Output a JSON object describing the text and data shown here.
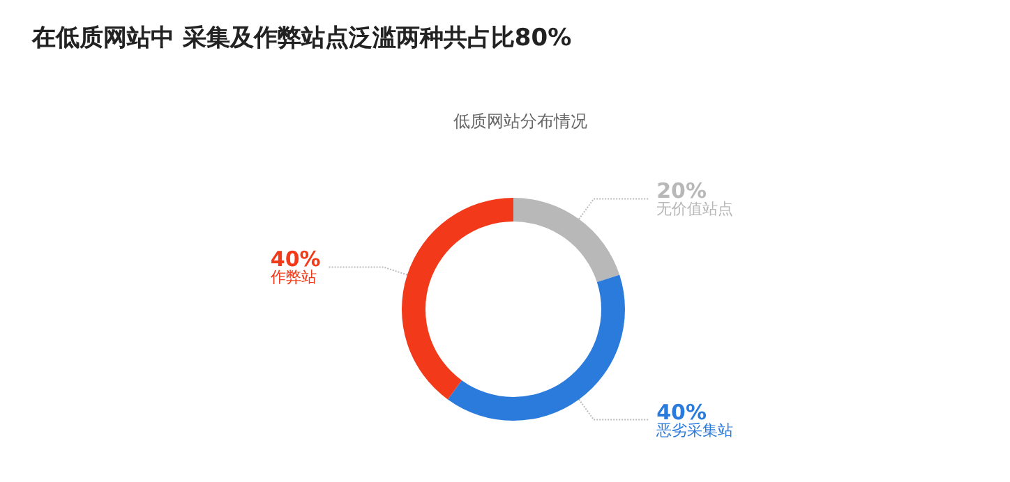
{
  "chart_data": {
    "type": "donut",
    "title": "在低质网站中 采集及作弊站点泛滥两种共占比80%",
    "subtitle": "低质网站分布情况",
    "categories": [
      "无价值站点",
      "恶劣采集站",
      "作弊站"
    ],
    "values": [
      20,
      40,
      40
    ],
    "value_labels": [
      "20%",
      "40%",
      "40%"
    ],
    "colors": [
      "#b8b8b8",
      "#2b7bdc",
      "#f2391a"
    ],
    "legend": false
  }
}
